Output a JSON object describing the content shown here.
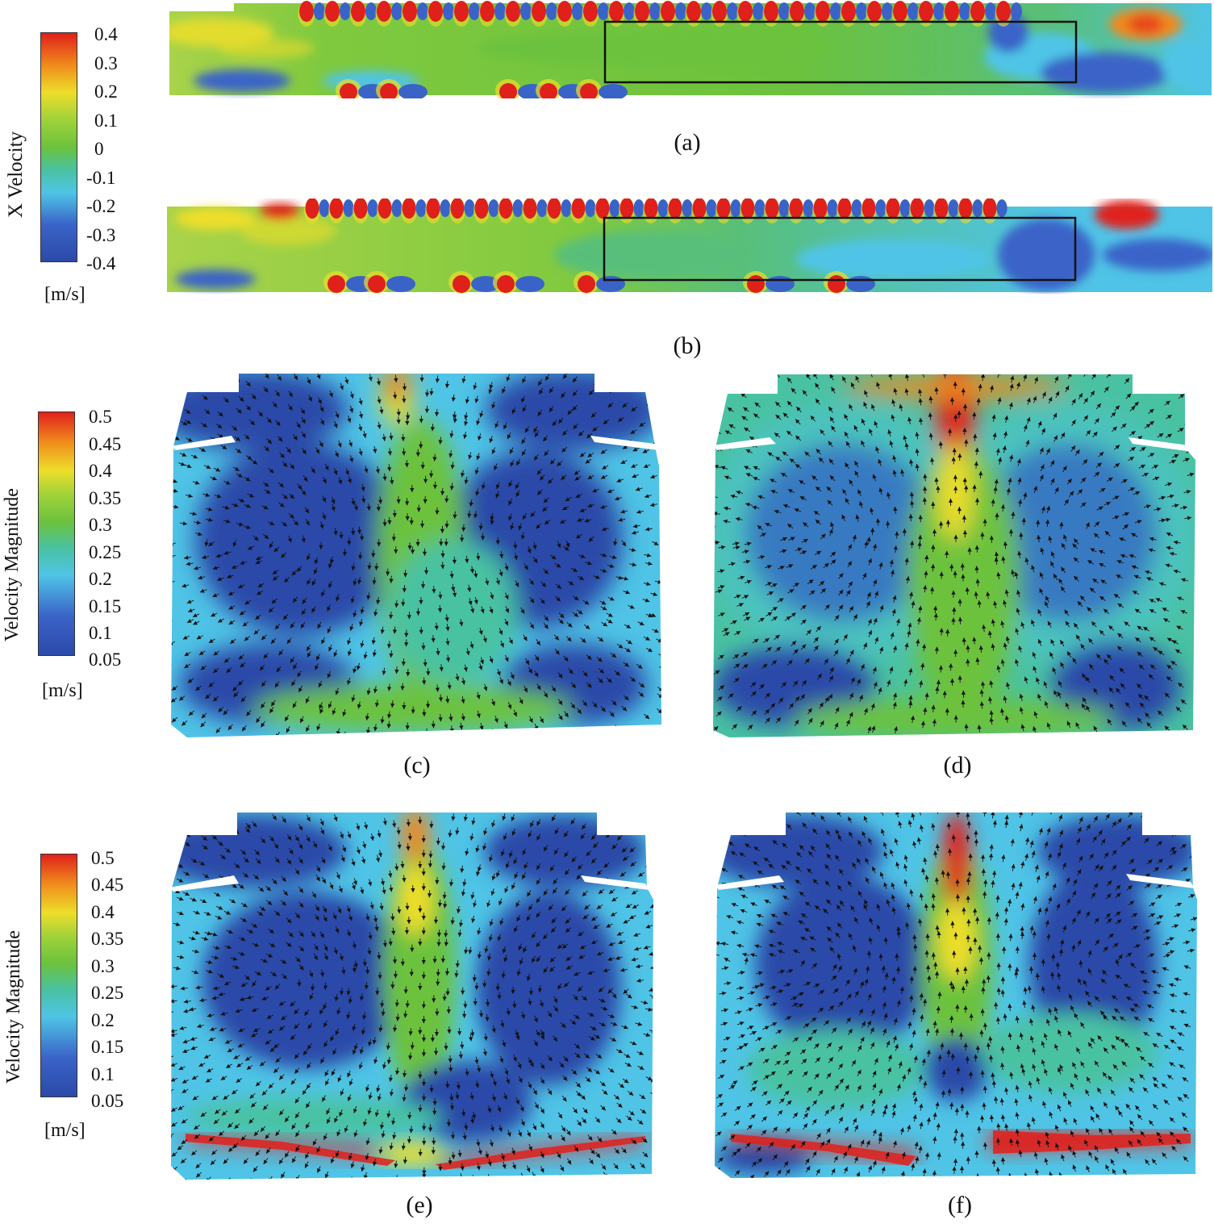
{
  "legend_x_velocity": {
    "title": "X Velocity",
    "unit": "[m/s]",
    "ticks": [
      "0.4",
      "0.3",
      "0.2",
      "0.1",
      "0",
      "-0.1",
      "-0.2",
      "-0.3",
      "-0.4"
    ],
    "range": [
      -0.4,
      0.4
    ]
  },
  "legend_mag_1": {
    "title": "Velocity Magnitude",
    "unit": "[m/s]",
    "ticks": [
      "0.5",
      "0.45",
      "0.4",
      "0.35",
      "0.3",
      "0.25",
      "0.2",
      "0.15",
      "0.1",
      "0.05"
    ],
    "range": [
      0.05,
      0.5
    ]
  },
  "legend_mag_2": {
    "title": "Velocity Magnitude",
    "unit": "[m/s]",
    "ticks": [
      "0.5",
      "0.45",
      "0.4",
      "0.35",
      "0.3",
      "0.25",
      "0.2",
      "0.15",
      "0.1",
      "0.05"
    ],
    "range": [
      0.05,
      0.5
    ]
  },
  "captions": {
    "a": "(a)",
    "b": "(b)",
    "c": "(c)",
    "d": "(d)",
    "e": "(e)",
    "f": "(f)"
  },
  "colors": {
    "red": "#e0201b",
    "orange": "#f08a1c",
    "yellow": "#eede2a",
    "green": "#6cc23d",
    "teal": "#49c2a2",
    "cyan": "#4fc4e6",
    "blue": "#3a63c8",
    "darkblue": "#2b4aa8"
  }
}
